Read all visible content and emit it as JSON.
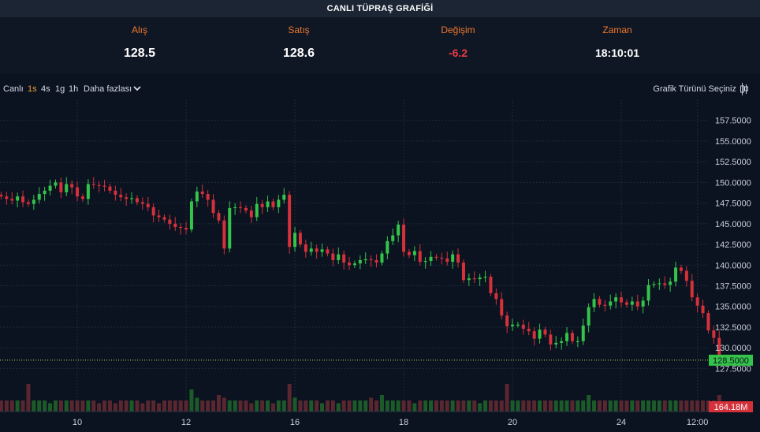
{
  "header": {
    "title": "CANLI TÜPRAŞ GRAFİĞİ"
  },
  "quotes": {
    "bid": {
      "label": "Alış",
      "value": "128.5"
    },
    "ask": {
      "label": "Satış",
      "value": "128.6"
    },
    "change": {
      "label": "Değişim",
      "value": "-6.2"
    },
    "time": {
      "label": "Zaman",
      "value": "18:10:01"
    }
  },
  "toolbar": {
    "live": "Canlı",
    "tf_1s": "1s",
    "tf_4s": "4s",
    "tf_1g": "1g",
    "tf_1h": "1h",
    "more": "Daha fazlası",
    "active_timeframe": "1s",
    "chart_type": "Grafik Türünü Seçiniz",
    "chart_type_icon": "candlestick-icon"
  },
  "colors": {
    "up": "#34c44a",
    "down": "#d4313b",
    "last_price_bg": "#34c44a",
    "volume_bg": "#d4313b",
    "accent": "#f0782d"
  },
  "chart_data": {
    "type": "candlestick",
    "y_ticks": [
      "157.5000",
      "155.0000",
      "152.5000",
      "150.0000",
      "147.5000",
      "145.0000",
      "142.5000",
      "140.0000",
      "137.5000",
      "135.0000",
      "132.5000",
      "130.0000",
      "127.5000"
    ],
    "ylim": [
      126.3,
      158.9
    ],
    "x_ticks": [
      {
        "label": "10",
        "idx": 14
      },
      {
        "label": "12",
        "idx": 34
      },
      {
        "label": "16",
        "idx": 54
      },
      {
        "label": "18",
        "idx": 74
      },
      {
        "label": "20",
        "idx": 94
      },
      {
        "label": "24",
        "idx": 114
      },
      {
        "label": "12:00",
        "idx": 128
      }
    ],
    "last_price": 128.5,
    "last_price_label": "128.5000",
    "volume_label": "164.18M",
    "closes": [
      148.3,
      148.0,
      147.8,
      148.3,
      147.6,
      147.4,
      147.9,
      148.6,
      149.0,
      149.6,
      150.0,
      148.8,
      149.8,
      149.4,
      148.3,
      148.0,
      149.8,
      149.7,
      149.6,
      149.5,
      149.0,
      148.5,
      148.2,
      148.0,
      148.1,
      147.6,
      147.4,
      147.0,
      146.0,
      145.8,
      145.5,
      145.0,
      144.6,
      144.5,
      144.3,
      147.7,
      148.9,
      148.6,
      147.9,
      146.3,
      145.4,
      142.0,
      146.9,
      147.0,
      146.9,
      146.6,
      145.8,
      147.4,
      147.0,
      147.7,
      147.0,
      147.9,
      148.5,
      142.2,
      143.9,
      142.5,
      141.6,
      142.0,
      141.6,
      141.9,
      141.4,
      140.6,
      141.3,
      140.3,
      140.0,
      140.2,
      140.6,
      140.7,
      140.6,
      140.3,
      141.4,
      142.9,
      143.6,
      144.9,
      141.6,
      141.2,
      141.7,
      140.4,
      140.5,
      141.0,
      140.9,
      140.8,
      140.4,
      141.3,
      140.3,
      138.2,
      138.4,
      138.3,
      138.5,
      138.6,
      136.6,
      135.9,
      133.9,
      132.6,
      132.8,
      132.8,
      132.3,
      132.0,
      131.1,
      132.2,
      131.6,
      130.4,
      130.6,
      130.8,
      131.8,
      130.8,
      130.8,
      132.7,
      134.9,
      135.9,
      135.2,
      135.1,
      135.6,
      136.1,
      135.5,
      135.2,
      135.6,
      135.0,
      135.7,
      137.6,
      137.7,
      137.8,
      137.6,
      138.0,
      139.7,
      139.3,
      138.1,
      136.1,
      135.1,
      134.2,
      132.1,
      131.2,
      128.5
    ],
    "volumes": [
      2,
      2,
      2,
      2,
      2,
      5,
      2,
      2,
      2,
      1.5,
      2,
      2,
      2,
      2,
      2,
      2,
      2,
      2,
      1.5,
      2,
      2,
      1.5,
      2,
      2,
      2,
      2,
      1.5,
      2,
      2,
      1.5,
      2,
      2,
      2,
      2,
      2,
      4,
      2.5,
      2,
      2,
      2,
      3,
      2.5,
      2,
      2,
      2,
      2,
      1.5,
      2,
      2,
      2,
      1.5,
      2,
      2,
      5,
      2.5,
      2,
      2,
      2,
      2,
      1.5,
      2,
      2,
      1.5,
      2,
      2,
      2,
      2,
      2,
      2.5,
      2,
      3,
      2,
      2,
      2,
      2,
      2,
      1.5,
      2,
      2,
      2,
      2,
      2,
      2,
      2,
      2,
      2,
      2,
      2,
      1.5,
      2,
      2,
      2,
      2,
      5,
      2,
      2,
      2,
      2,
      2,
      2,
      2,
      2,
      2,
      2,
      2,
      2,
      2,
      2,
      3,
      2,
      2,
      2,
      2,
      2,
      2,
      2,
      2,
      2,
      2,
      2,
      2,
      2,
      2,
      2,
      2,
      2,
      2,
      2,
      2,
      2,
      2,
      2,
      3
    ]
  }
}
